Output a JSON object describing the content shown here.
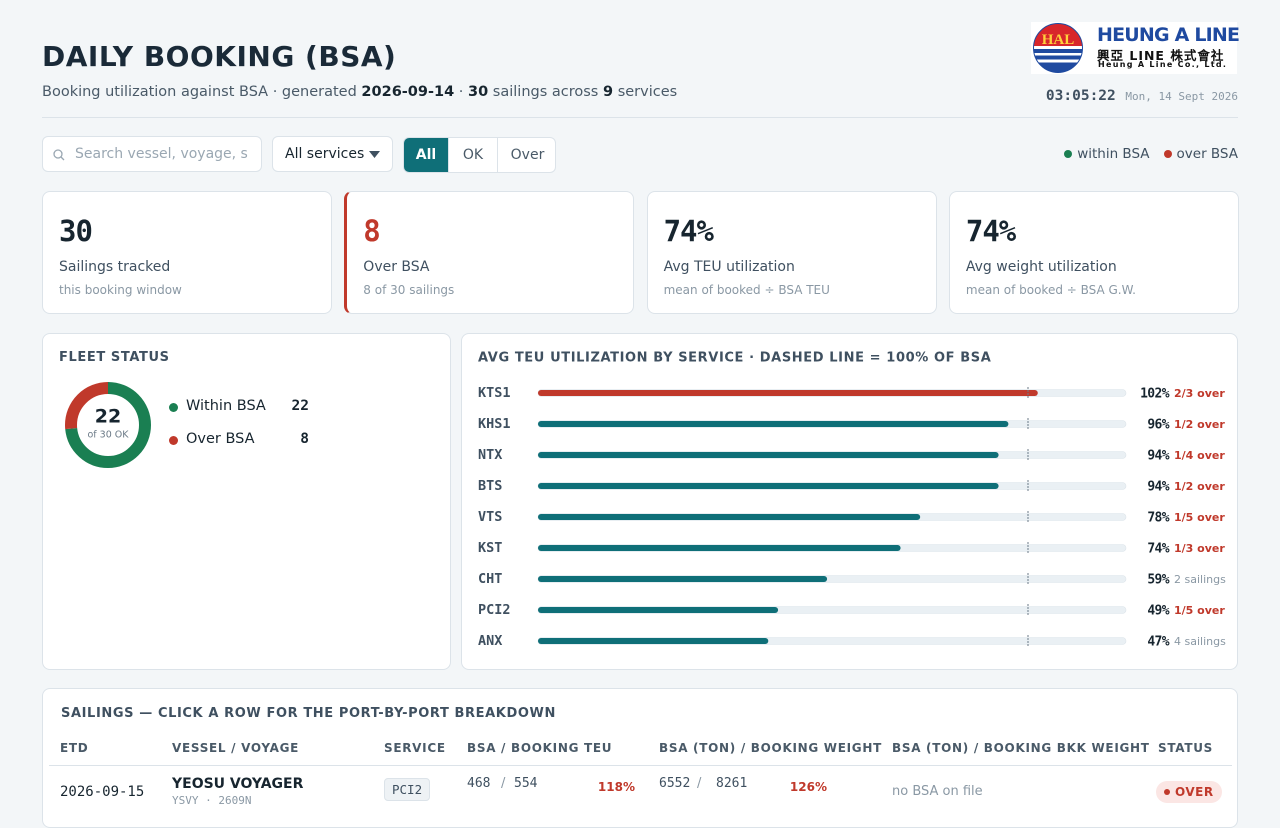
{
  "header": {
    "title": "DAILY BOOKING (BSA)",
    "subtitle": {
      "lead": "Booking utilization against BSA · generated",
      "date": "2026-09-14",
      "sep": "·",
      "sailings": "30",
      "sailings_text": "sailings across",
      "services": "9",
      "services_text": "services"
    },
    "clock": {
      "time": "03:05:22",
      "date": "Mon, 14 Sept 2026"
    },
    "logo": {
      "mark": "HAL",
      "name": "HEUNG A LINE",
      "native": "興亞 LINE 株式會社",
      "company": "Heung A Line Co., Ltd."
    }
  },
  "toolbar": {
    "search_placeholder": "Search vessel, voyage, s",
    "service_filter": "All services",
    "status_filter": [
      "All",
      "OK",
      "Over"
    ],
    "legend": [
      {
        "label": "within BSA",
        "color": "#1a7f52"
      },
      {
        "label": "over BSA",
        "color": "#c0392b"
      }
    ]
  },
  "kpis": [
    {
      "value": "30",
      "label": "Sailings tracked",
      "note": "this booking window",
      "color": "#17252f"
    },
    {
      "value": "8",
      "label": "Over BSA",
      "note": "8 of 30 sailings",
      "color": "#c0392b"
    },
    {
      "value": "74%",
      "label": "Avg TEU utilization",
      "note": "mean of booked ÷ BSA TEU",
      "color": "#17252f"
    },
    {
      "value": "74%",
      "label": "Avg weight utilization",
      "note": "mean of booked ÷ BSA G.W.",
      "color": "#17252f"
    }
  ],
  "fleet_status": {
    "title": "FLEET STATUS",
    "center_value": "22",
    "center_label": "of 30 OK",
    "segments": [
      {
        "label": "Within BSA",
        "value": 22,
        "color": "#1a7f52"
      },
      {
        "label": "Over BSA",
        "value": 8,
        "color": "#c0392b"
      }
    ]
  },
  "teu_chart": {
    "type": "bar",
    "title": "AVG TEU UTILIZATION BY SERVICE · DASHED LINE = 100% OF BSA",
    "categories": [
      "KTS1",
      "KHS1",
      "NTX",
      "BTS",
      "VTS",
      "KST",
      "CHT",
      "PCI2",
      "ANX"
    ],
    "values": [
      102,
      96,
      94,
      94,
      78,
      74,
      59,
      49,
      47
    ],
    "value_labels": [
      "102%",
      "96%",
      "94%",
      "94%",
      "78%",
      "74%",
      "59%",
      "49%",
      "47%"
    ],
    "notes": [
      "2/3 over",
      "1/2 over",
      "1/4 over",
      "1/2 over",
      "1/5 over",
      "1/3 over",
      "2 sailings",
      "1/5 over",
      "4 sailings"
    ],
    "note_colors": [
      "#c0392b",
      "#c0392b",
      "#c0392b",
      "#c0392b",
      "#c0392b",
      "#c0392b",
      "#8a98a4",
      "#c0392b",
      "#8a98a4"
    ],
    "xlim": [
      0,
      120
    ],
    "reference": 100,
    "color": "#0f6f78",
    "over_color": "#c0392b"
  },
  "sailings": {
    "title": "SAILINGS — CLICK A ROW FOR THE PORT-BY-PORT BREAKDOWN",
    "columns": [
      "ETD",
      "VESSEL / VOYAGE",
      "SERVICE",
      "BSA / BOOKING TEU",
      "BSA (TON) / BOOKING WEIGHT",
      "BSA (TON) / BOOKING BKK WEIGHT",
      "STATUS"
    ],
    "rows": [
      {
        "etd": "2026-09-15",
        "vessel": "YEOSU VOYAGER",
        "voyage": "YSVY · 2609N",
        "service": "PCI2",
        "teu_bsa": "468",
        "teu_booked": "554",
        "teu_pct": "118%",
        "wt_bsa": "6552",
        "wt_booked": "8261",
        "wt_pct": "126%",
        "bkk": "no BSA on file",
        "status": "OVER"
      }
    ],
    "slash": "/"
  }
}
